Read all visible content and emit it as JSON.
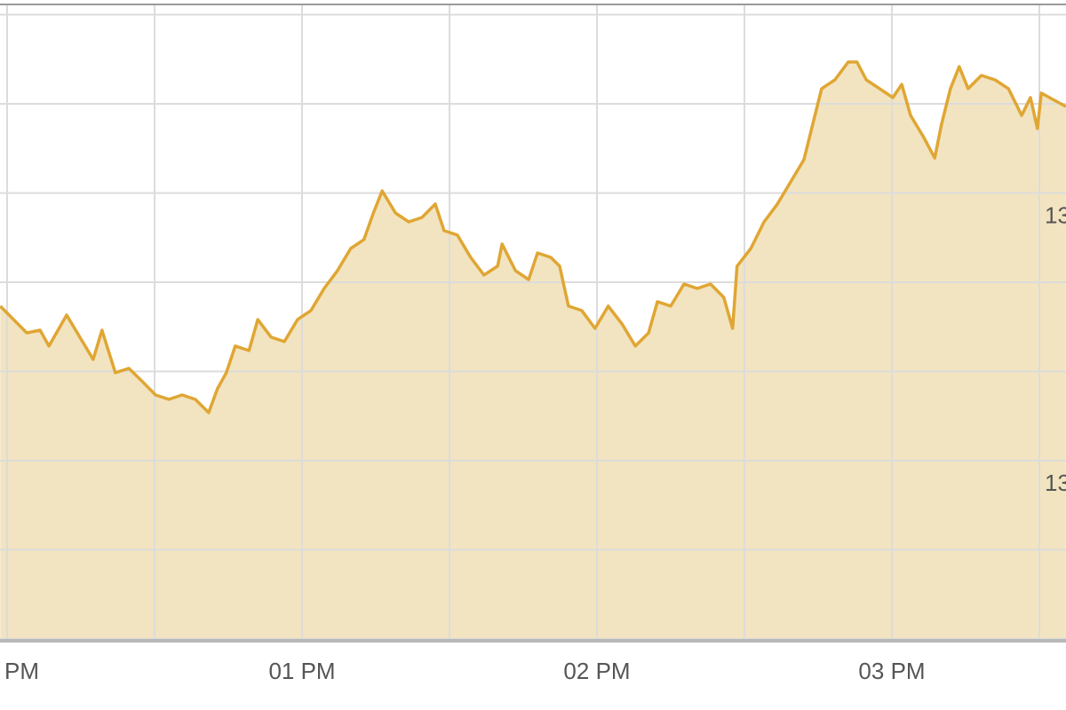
{
  "chart_data": {
    "type": "area",
    "xlim": [
      -1.45,
      215.42
    ],
    "xticks": [
      {
        "value": 0,
        "label": "PM"
      },
      {
        "value": 60,
        "label": "01 PM"
      },
      {
        "value": 120,
        "label": "02 PM"
      },
      {
        "value": 180,
        "label": "03 PM"
      }
    ],
    "xgrid": [
      0,
      30,
      60,
      90,
      120,
      150,
      180,
      210
    ],
    "ylim": [
      1310,
      1345.57
    ],
    "yticks": [
      {
        "value": 1335,
        "label": "13"
      },
      {
        "value": 1320,
        "label": "13"
      }
    ],
    "ygrid": [
      1310,
      1315,
      1320,
      1325,
      1330,
      1335,
      1340,
      1345
    ],
    "grid": true,
    "color": "#e0a634",
    "fill": "#f2e4c0",
    "x": [
      -1.4,
      1.3,
      4.0,
      6.7,
      8.5,
      12.1,
      14.8,
      17.5,
      19.3,
      22.0,
      24.8,
      27.5,
      30.2,
      32.9,
      35.6,
      38.3,
      41.0,
      42.8,
      44.6,
      46.4,
      49.2,
      51.0,
      53.7,
      56.4,
      59.1,
      61.8,
      64.5,
      67.2,
      69.9,
      72.6,
      74.5,
      76.3,
      79.0,
      81.7,
      84.4,
      87.1,
      88.9,
      91.6,
      94.3,
      97.0,
      99.8,
      100.7,
      103.4,
      106.1,
      107.9,
      110.6,
      112.4,
      114.2,
      116.9,
      119.6,
      122.3,
      125.1,
      127.8,
      130.5,
      132.3,
      135.0,
      137.7,
      140.4,
      143.1,
      145.8,
      147.6,
      148.5,
      151.3,
      154.0,
      156.7,
      159.4,
      162.1,
      163.9,
      165.7,
      168.4,
      171.1,
      172.9,
      174.8,
      177.5,
      180.2,
      182.0,
      183.8,
      186.5,
      188.7,
      190.1,
      191.9,
      193.7,
      195.5,
      198.2,
      201.0,
      203.7,
      206.4,
      208.2,
      209.6,
      210.4,
      212.7,
      215.4
    ],
    "values": [
      1328.66,
      1327.91,
      1327.16,
      1327.31,
      1326.42,
      1328.16,
      1326.92,
      1325.67,
      1327.31,
      1324.93,
      1325.17,
      1324.43,
      1323.68,
      1323.43,
      1323.68,
      1323.43,
      1322.69,
      1324.03,
      1324.93,
      1326.42,
      1326.17,
      1327.91,
      1326.92,
      1326.67,
      1327.91,
      1328.41,
      1329.65,
      1330.65,
      1331.89,
      1332.39,
      1333.88,
      1335.12,
      1333.88,
      1333.38,
      1333.63,
      1334.38,
      1332.89,
      1332.64,
      1331.39,
      1330.4,
      1330.9,
      1332.14,
      1330.65,
      1330.15,
      1331.64,
      1331.39,
      1330.9,
      1328.66,
      1328.41,
      1327.41,
      1328.66,
      1327.66,
      1326.42,
      1327.16,
      1328.91,
      1328.66,
      1329.9,
      1329.65,
      1329.9,
      1329.15,
      1327.41,
      1330.9,
      1331.89,
      1333.38,
      1334.38,
      1335.62,
      1336.87,
      1338.86,
      1340.85,
      1341.34,
      1342.34,
      1342.34,
      1341.34,
      1340.85,
      1340.35,
      1341.09,
      1339.35,
      1338.11,
      1336.96,
      1338.86,
      1340.85,
      1342.09,
      1340.85,
      1341.59,
      1341.34,
      1340.85,
      1339.35,
      1340.35,
      1338.61,
      1340.6,
      1340.25,
      1339.85
    ]
  }
}
